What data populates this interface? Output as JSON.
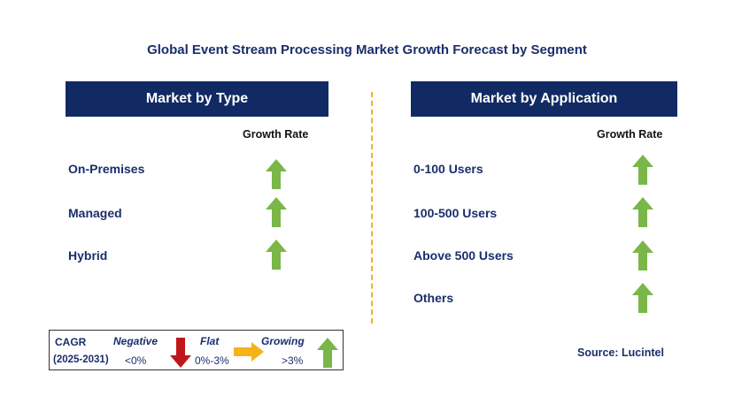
{
  "title": "Global Event Stream Processing Market Growth Forecast by Segment",
  "left_panel": {
    "header": "Market by Type",
    "growth_rate_label": "Growth Rate",
    "rows": [
      {
        "label": "On-Premises",
        "trend": "growing"
      },
      {
        "label": "Managed",
        "trend": "growing"
      },
      {
        "label": "Hybrid",
        "trend": "growing"
      }
    ]
  },
  "right_panel": {
    "header": "Market by Application",
    "growth_rate_label": "Growth Rate",
    "rows": [
      {
        "label": "0-100 Users",
        "trend": "growing"
      },
      {
        "label": "100-500 Users",
        "trend": "growing"
      },
      {
        "label": "Above 500 Users",
        "trend": "growing"
      },
      {
        "label": "Others",
        "trend": "growing"
      }
    ]
  },
  "legend": {
    "cagr_label": "CAGR",
    "period": "(2025-2031)",
    "negative_label": "Negative",
    "negative_range": "<0%",
    "flat_label": "Flat",
    "flat_range": "0%-3%",
    "growing_label": "Growing",
    "growing_range": ">3%"
  },
  "source": "Source: Lucintel",
  "colors": {
    "header_bg": "#112a63",
    "growing": "#7ab648",
    "negative": "#c0161b",
    "flat": "#f6b319",
    "divider": "#f2b21f"
  }
}
